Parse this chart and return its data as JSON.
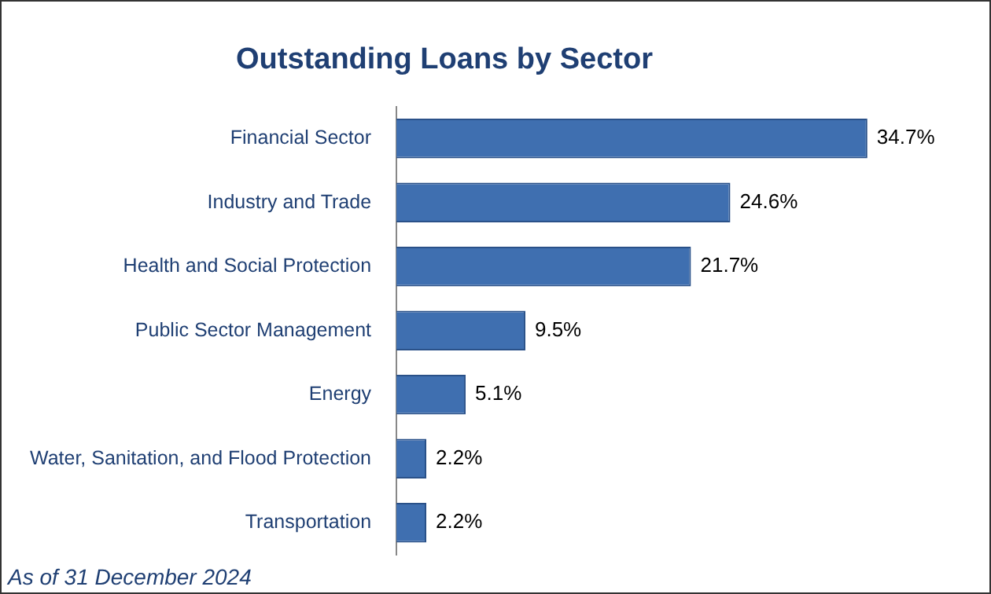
{
  "chart_data": {
    "type": "bar",
    "orientation": "horizontal",
    "title": "Outstanding Loans by Sector",
    "categories": [
      "Financial Sector",
      "Industry and Trade",
      "Health and Social Protection",
      "Public Sector Management",
      "Energy",
      "Water, Sanitation, and Flood Protection",
      "Transportation"
    ],
    "values": [
      34.7,
      24.6,
      21.7,
      9.5,
      5.1,
      2.2,
      2.2
    ],
    "value_labels": [
      "34.7%",
      "24.6%",
      "21.7%",
      "9.5%",
      "5.1%",
      "2.2%",
      "2.2%"
    ],
    "color": "#3f6fb0",
    "legend": false,
    "tick_labels": "y",
    "annotations": [
      "As of 31 December 2024"
    ]
  }
}
